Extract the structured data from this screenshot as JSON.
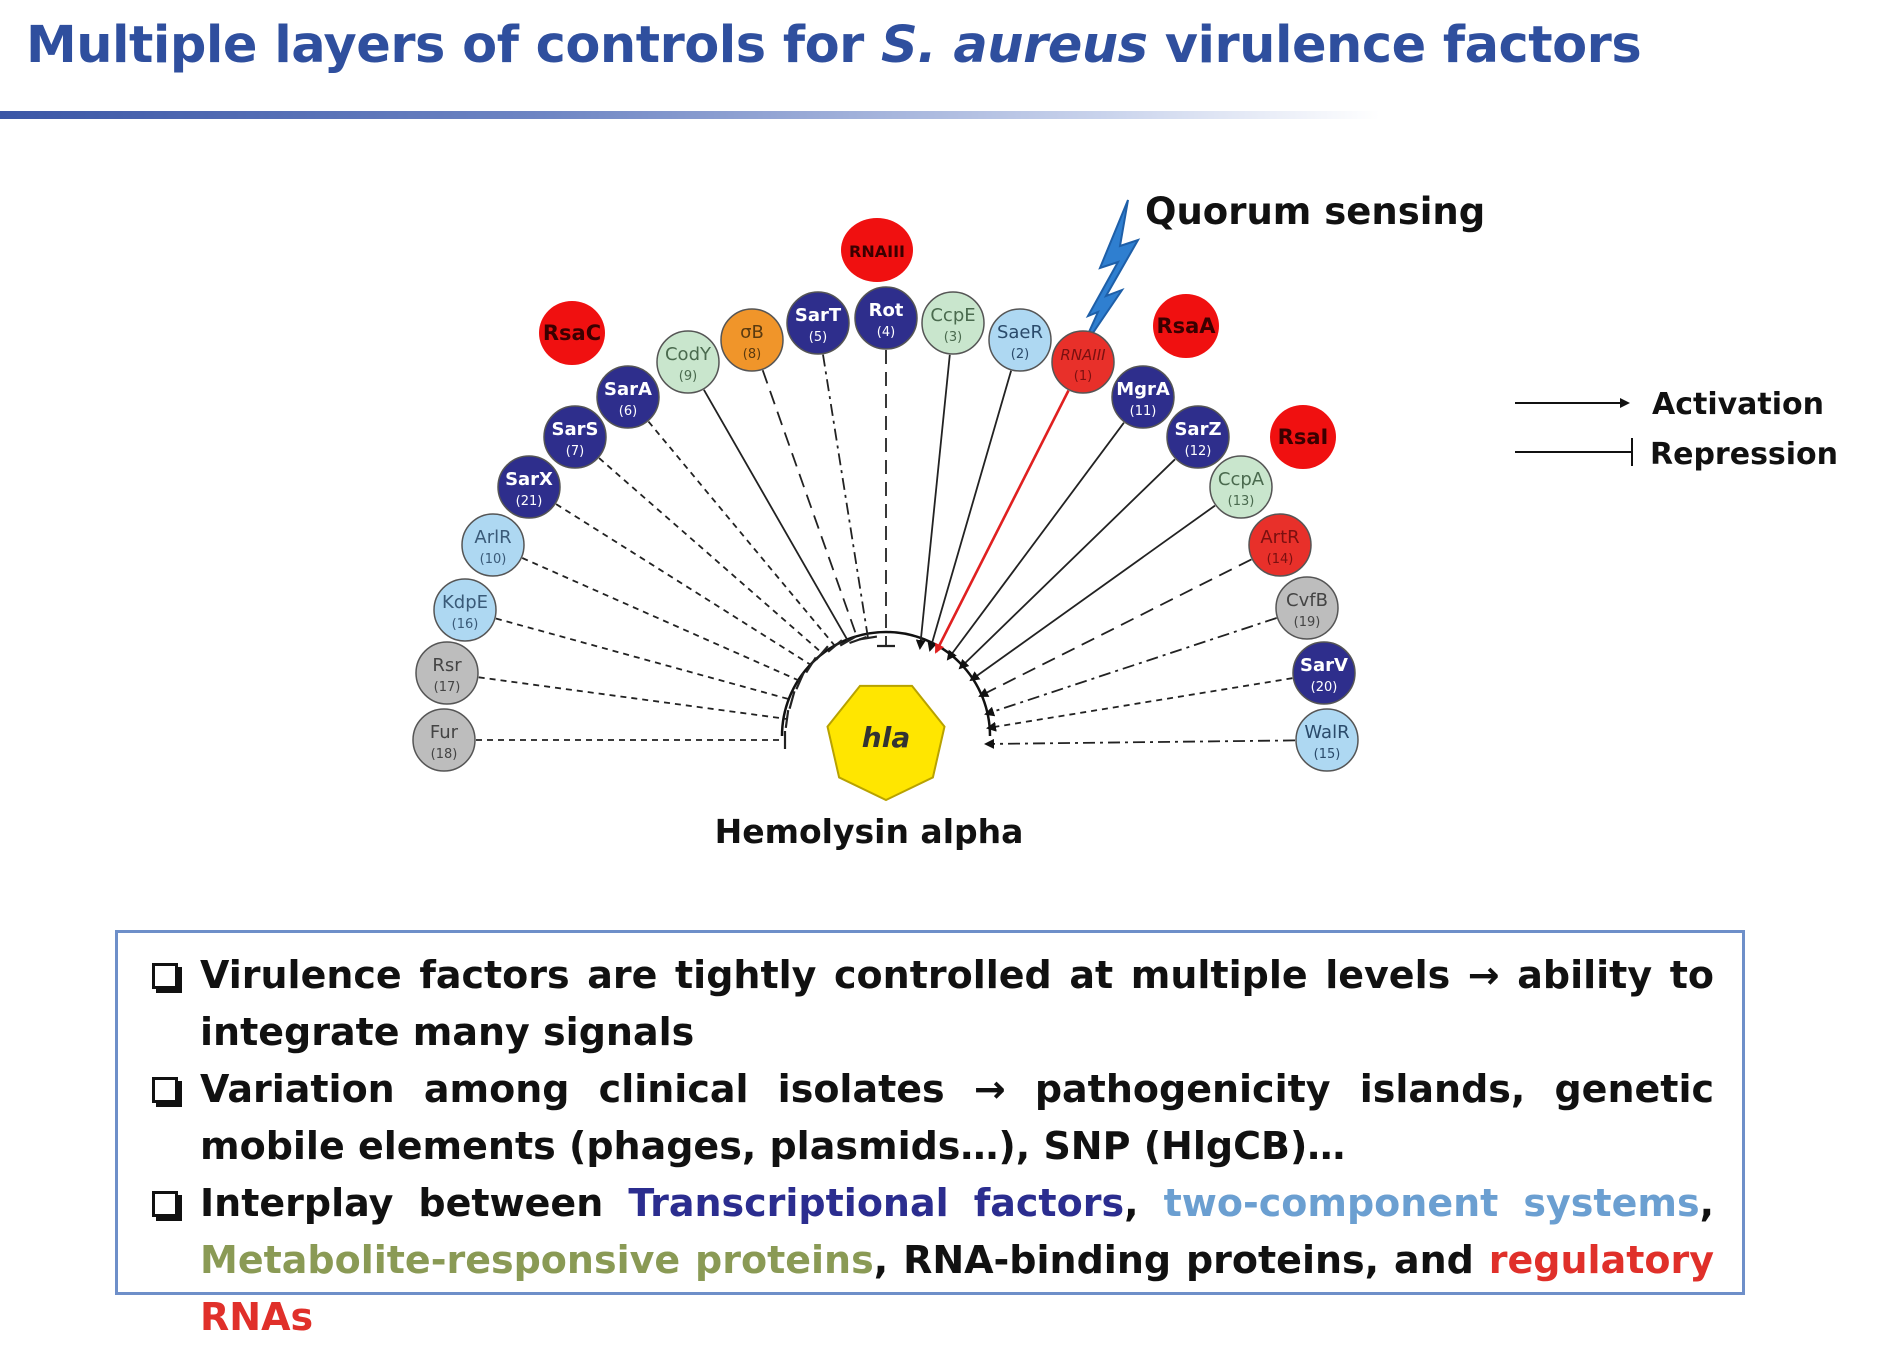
{
  "title": {
    "part1": "Multiple layers of controls for ",
    "italic": "S. aureus",
    "part2": " virulence factors"
  },
  "diagram": {
    "quorum_label": "Quorum sensing",
    "target_gene": "hla",
    "target_caption": "Hemolysin alpha",
    "legend": {
      "activation": "Activation",
      "repression": "Repression"
    },
    "regulators": [
      {
        "id": "fur",
        "label": "Fur",
        "num": "(18)",
        "fill": "#bdbdbd",
        "text": "#444444",
        "link": "dashed",
        "end": "repress"
      },
      {
        "id": "rsr",
        "label": "Rsr",
        "num": "(17)",
        "fill": "#bdbdbd",
        "text": "#444444",
        "link": "dashed",
        "end": "repress"
      },
      {
        "id": "kdpe",
        "label": "KdpE",
        "num": "(16)",
        "fill": "#aed8f2",
        "text": "#3a5a78",
        "link": "dashed",
        "end": "repress"
      },
      {
        "id": "arlr",
        "label": "ArlR",
        "num": "(10)",
        "fill": "#aed8f2",
        "text": "#3a5a78",
        "link": "dashed",
        "end": "repress"
      },
      {
        "id": "sarx",
        "label": "SarX",
        "num": "(21)",
        "fill": "#2e2e8c",
        "text": "#ffffff",
        "link": "dashed",
        "end": "repress"
      },
      {
        "id": "sars",
        "label": "SarS",
        "num": "(7)",
        "fill": "#2e2e8c",
        "text": "#ffffff",
        "link": "dashed",
        "end": "repress"
      },
      {
        "id": "sara",
        "label": "SarA",
        "num": "(6)",
        "fill": "#2e2e8c",
        "text": "#ffffff",
        "link": "dashed",
        "end": "repress"
      },
      {
        "id": "cody",
        "label": "CodY",
        "num": "(9)",
        "fill": "#c9e6cd",
        "text": "#4a6a4e",
        "link": "solid",
        "end": "repress"
      },
      {
        "id": "sigb",
        "label": "σB",
        "num": "(8)",
        "fill": "#f0952a",
        "text": "#5a3a10",
        "link": "longdash",
        "end": "repress"
      },
      {
        "id": "sart",
        "label": "SarT",
        "num": "(5)",
        "fill": "#2e2e8c",
        "text": "#ffffff",
        "link": "dashdot",
        "end": "repress"
      },
      {
        "id": "rot",
        "label": "Rot",
        "num": "(4)",
        "fill": "#2e2e8c",
        "text": "#ffffff",
        "link": "longdash",
        "end": "repress"
      },
      {
        "id": "ccpe",
        "label": "CcpE",
        "num": "(3)",
        "fill": "#c9e6cd",
        "text": "#4a6a4e",
        "link": "solid",
        "end": "activate"
      },
      {
        "id": "saer",
        "label": "SaeR",
        "num": "(2)",
        "fill": "#aed8f2",
        "text": "#2a4a6a",
        "link": "solid",
        "end": "activate"
      },
      {
        "id": "rnaiii",
        "label": "RNAIII",
        "num": "(1)",
        "fill": "#e8302a",
        "text": "#7a1010",
        "link": "red",
        "end": "activate",
        "italic": true
      },
      {
        "id": "mgra",
        "label": "MgrA",
        "num": "(11)",
        "fill": "#2e2e8c",
        "text": "#ffffff",
        "link": "solid",
        "end": "activate"
      },
      {
        "id": "sarz",
        "label": "SarZ",
        "num": "(12)",
        "fill": "#2e2e8c",
        "text": "#ffffff",
        "link": "solid",
        "end": "activate"
      },
      {
        "id": "ccpa",
        "label": "CcpA",
        "num": "(13)",
        "fill": "#c9e6cd",
        "text": "#4a6a4e",
        "link": "solid",
        "end": "activate"
      },
      {
        "id": "artr",
        "label": "ArtR",
        "num": "(14)",
        "fill": "#e8302a",
        "text": "#7a1010",
        "link": "longdash",
        "end": "activate"
      },
      {
        "id": "cvfb",
        "label": "CvfB",
        "num": "(19)",
        "fill": "#bdbdbd",
        "text": "#444444",
        "link": "dashdot",
        "end": "activate"
      },
      {
        "id": "sarv",
        "label": "SarV",
        "num": "(20)",
        "fill": "#2e2e8c",
        "text": "#ffffff",
        "link": "dashed",
        "end": "activate"
      },
      {
        "id": "walr",
        "label": "WalR",
        "num": "(15)",
        "fill": "#aed8f2",
        "text": "#2a4a6a",
        "link": "dashdot",
        "end": "activate"
      }
    ],
    "srnas": [
      {
        "id": "rsac",
        "label": "RsaC"
      },
      {
        "id": "rnaiii-top",
        "label": "RNAIII"
      },
      {
        "id": "rsaa",
        "label": "RsaA"
      },
      {
        "id": "rsai",
        "label": "RsaI"
      }
    ]
  },
  "bullets": [
    {
      "text": "Virulence factors are tightly controlled at multiple levels → ability to integrate many signals"
    },
    {
      "text": "Variation among clinical isolates → pathogenicity islands, genetic mobile elements (phages, plasmids…), SNP (HlgCB)…"
    },
    {
      "s1": "Interplay between ",
      "tf": "Transcriptional factors",
      "s2": ", ",
      "tcs": "two-component systems",
      "s3": ", ",
      "met": "Metabolite-responsive proteins",
      "s4": ", RNA-binding proteins, and ",
      "rna": "regulatory RNAs"
    }
  ]
}
